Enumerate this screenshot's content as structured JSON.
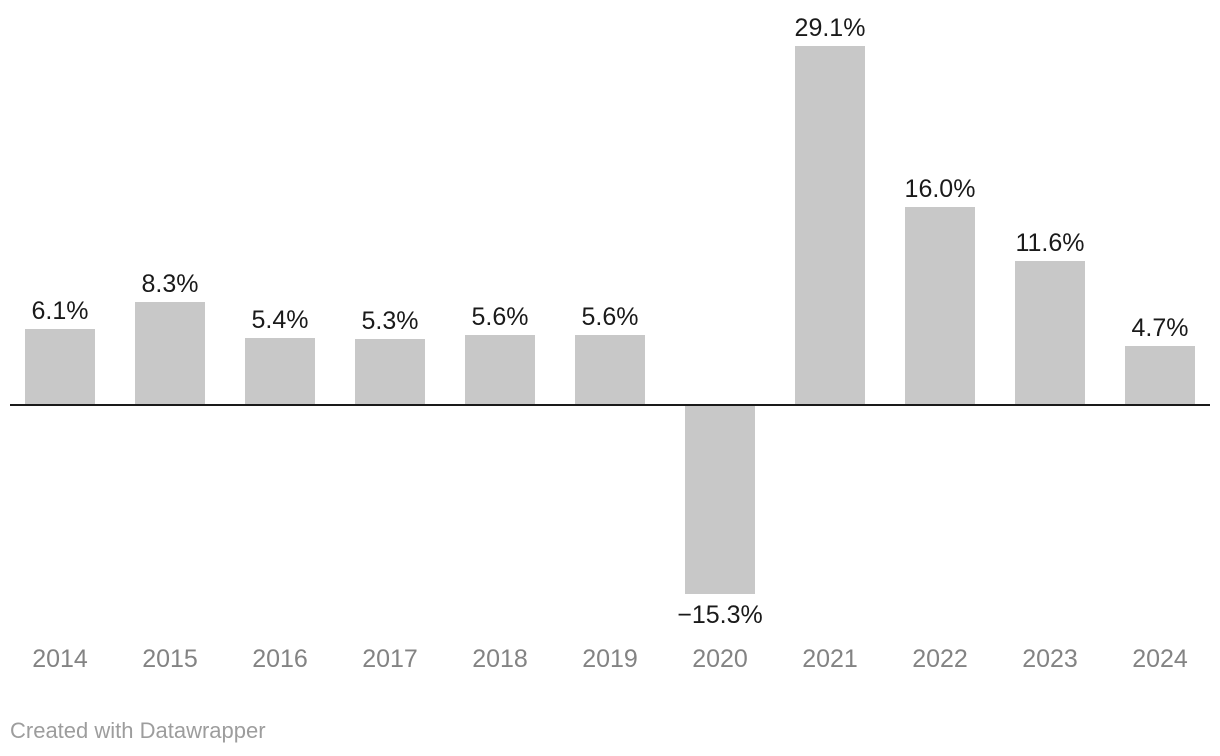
{
  "chart_data": {
    "type": "bar",
    "categories": [
      "2014",
      "2015",
      "2016",
      "2017",
      "2018",
      "2019",
      "2020",
      "2021",
      "2022",
      "2023",
      "2024"
    ],
    "values": [
      6.1,
      8.3,
      5.4,
      5.3,
      5.6,
      5.6,
      -15.3,
      29.1,
      16.0,
      11.6,
      4.7
    ],
    "value_labels": [
      "6.1%",
      "8.3%",
      "5.4%",
      "5.3%",
      "5.6%",
      "5.6%",
      "−15.3%",
      "29.1%",
      "16.0%",
      "11.6%",
      "4.7%"
    ],
    "title": "",
    "xlabel": "",
    "ylabel": "",
    "ylim": [
      -17,
      30
    ],
    "grid": false,
    "legend": "none",
    "bar_color": "#c8c8c8",
    "baseline_color": "#1a1a1a",
    "value_label_color": "#1a1a1a",
    "category_label_color": "#838383"
  },
  "footer": {
    "attribution": "Created with Datawrapper"
  }
}
